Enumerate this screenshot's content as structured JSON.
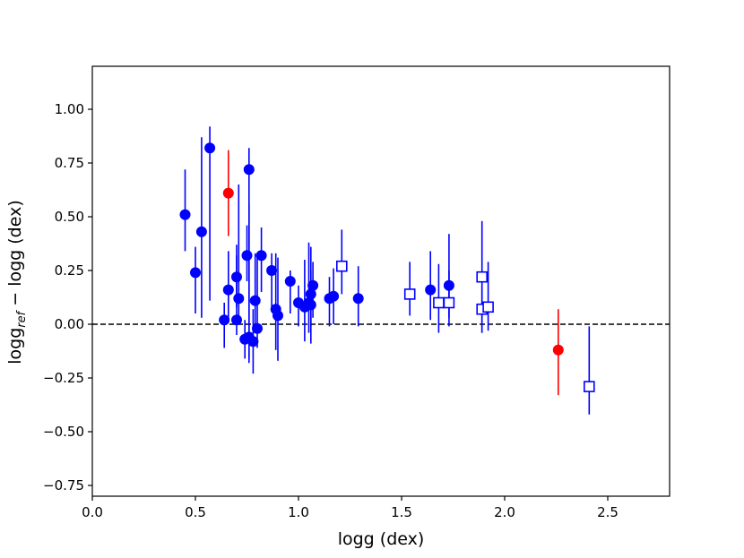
{
  "chart_data": {
    "type": "scatter",
    "xlabel": "logg (dex)",
    "ylabel_parts": {
      "pre": "logg",
      "sub": "ref",
      "post": " − logg (dex)"
    },
    "xlim": [
      0.0,
      2.8
    ],
    "ylim": [
      -0.8,
      1.2
    ],
    "x_ticks": [
      0.0,
      0.5,
      1.0,
      1.5,
      2.0,
      2.5
    ],
    "x_tick_labels": [
      "0.0",
      "0.5",
      "1.0",
      "1.5",
      "2.0",
      "2.5"
    ],
    "y_ticks": [
      1.0,
      0.75,
      0.5,
      0.25,
      0.0,
      -0.25,
      -0.5,
      -0.75
    ],
    "y_tick_labels": [
      "1.00",
      "0.75",
      "0.50",
      "0.25",
      "0.00",
      "−0.25",
      "−0.50",
      "−0.75"
    ],
    "reference_line": {
      "y": 0.0,
      "style": "dashed",
      "color": "#000000"
    },
    "grid": false,
    "legend": "none",
    "series": [
      {
        "marker": "circle-filled",
        "color": "#0000ff",
        "points": [
          {
            "x": 0.45,
            "y": 0.51,
            "lo": 0.34,
            "hi": 0.72
          },
          {
            "x": 0.5,
            "y": 0.24,
            "lo": 0.05,
            "hi": 0.36
          },
          {
            "x": 0.53,
            "y": 0.43,
            "lo": 0.03,
            "hi": 0.87
          },
          {
            "x": 0.57,
            "y": 0.82,
            "lo": 0.11,
            "hi": 0.92
          },
          {
            "x": 0.64,
            "y": 0.02,
            "lo": -0.11,
            "hi": 0.1
          },
          {
            "x": 0.66,
            "y": 0.16,
            "lo": 0.02,
            "hi": 0.34
          },
          {
            "x": 0.7,
            "y": 0.02,
            "lo": -0.05,
            "hi": 0.32
          },
          {
            "x": 0.7,
            "y": 0.22,
            "lo": 0.08,
            "hi": 0.37
          },
          {
            "x": 0.71,
            "y": 0.12,
            "lo": 0.03,
            "hi": 0.65
          },
          {
            "x": 0.74,
            "y": -0.07,
            "lo": -0.16,
            "hi": 0.02
          },
          {
            "x": 0.75,
            "y": 0.32,
            "lo": 0.2,
            "hi": 0.46
          },
          {
            "x": 0.76,
            "y": 0.72,
            "lo": -0.18,
            "hi": 0.82
          },
          {
            "x": 0.76,
            "y": -0.06,
            "lo": -0.16,
            "hi": 0.56
          },
          {
            "x": 0.78,
            "y": -0.08,
            "lo": -0.23,
            "hi": 0.07
          },
          {
            "x": 0.79,
            "y": 0.11,
            "lo": -0.02,
            "hi": 0.33
          },
          {
            "x": 0.8,
            "y": -0.02,
            "lo": -0.11,
            "hi": 0.33
          },
          {
            "x": 0.82,
            "y": 0.32,
            "lo": 0.15,
            "hi": 0.45
          },
          {
            "x": 0.87,
            "y": 0.25,
            "lo": 0.06,
            "hi": 0.33
          },
          {
            "x": 0.89,
            "y": 0.07,
            "lo": -0.12,
            "hi": 0.33
          },
          {
            "x": 0.9,
            "y": 0.04,
            "lo": -0.17,
            "hi": 0.31
          },
          {
            "x": 0.96,
            "y": 0.2,
            "lo": 0.05,
            "hi": 0.25
          },
          {
            "x": 1.0,
            "y": 0.1,
            "lo": -0.01,
            "hi": 0.18
          },
          {
            "x": 1.03,
            "y": 0.08,
            "lo": -0.08,
            "hi": 0.3
          },
          {
            "x": 1.05,
            "y": 0.1,
            "lo": -0.04,
            "hi": 0.38
          },
          {
            "x": 1.06,
            "y": 0.09,
            "lo": -0.09,
            "hi": 0.25
          },
          {
            "x": 1.06,
            "y": 0.14,
            "lo": -0.01,
            "hi": 0.36
          },
          {
            "x": 1.07,
            "y": 0.18,
            "lo": 0.03,
            "hi": 0.29
          },
          {
            "x": 1.15,
            "y": 0.12,
            "lo": -0.01,
            "hi": 0.22
          },
          {
            "x": 1.17,
            "y": 0.13,
            "lo": 0.0,
            "hi": 0.26
          },
          {
            "x": 1.29,
            "y": 0.12,
            "lo": -0.01,
            "hi": 0.27
          },
          {
            "x": 1.64,
            "y": 0.16,
            "lo": 0.02,
            "hi": 0.34
          },
          {
            "x": 1.73,
            "y": 0.18,
            "lo": 0.03,
            "hi": 0.42
          }
        ]
      },
      {
        "marker": "square-open",
        "color": "#0000ff",
        "points": [
          {
            "x": 1.21,
            "y": 0.27,
            "lo": 0.14,
            "hi": 0.44
          },
          {
            "x": 1.54,
            "y": 0.14,
            "lo": 0.04,
            "hi": 0.29
          },
          {
            "x": 1.68,
            "y": 0.1,
            "lo": -0.04,
            "hi": 0.28
          },
          {
            "x": 1.73,
            "y": 0.1,
            "lo": -0.01,
            "hi": 0.25
          },
          {
            "x": 1.89,
            "y": 0.22,
            "lo": -0.04,
            "hi": 0.48
          },
          {
            "x": 1.89,
            "y": 0.07,
            "lo": -0.04,
            "hi": 0.18
          },
          {
            "x": 1.92,
            "y": 0.08,
            "lo": -0.03,
            "hi": 0.29
          },
          {
            "x": 2.41,
            "y": -0.29,
            "lo": -0.42,
            "hi": -0.01
          }
        ]
      },
      {
        "marker": "circle-filled",
        "color": "#ff0000",
        "points": [
          {
            "x": 0.66,
            "y": 0.61,
            "lo": 0.41,
            "hi": 0.81
          },
          {
            "x": 2.26,
            "y": -0.12,
            "lo": -0.33,
            "hi": 0.07
          }
        ]
      }
    ]
  }
}
